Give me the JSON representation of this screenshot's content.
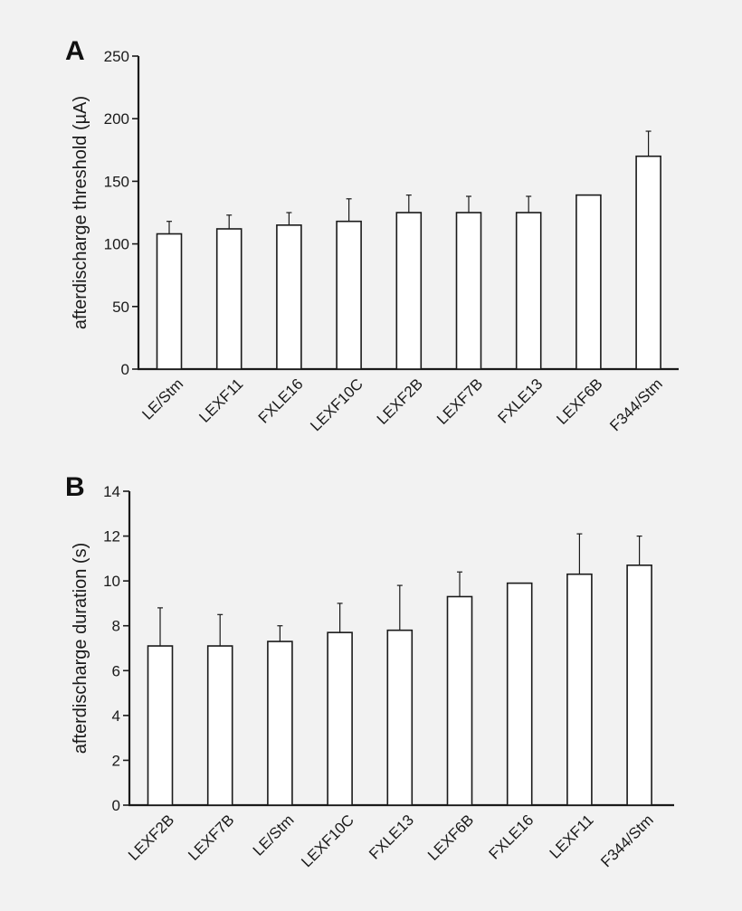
{
  "chart_data": [
    {
      "panel": "A",
      "type": "bar",
      "ylabel": "afterdischarge threshold (µA)",
      "ylim": [
        0,
        250
      ],
      "yticks": [
        0,
        50,
        100,
        150,
        200,
        250
      ],
      "categories": [
        "LE/Stm",
        "LEXF11",
        "FXLE16",
        "LEXF10C",
        "LEXF2B",
        "LEXF7B",
        "FXLE13",
        "LEXF6B",
        "F344/Stm"
      ],
      "values": [
        108,
        112,
        115,
        118,
        125,
        125,
        125,
        139,
        170
      ],
      "error_upper": [
        118,
        123,
        125,
        136,
        139,
        138,
        138,
        null,
        190
      ],
      "grid": false,
      "legend": "none"
    },
    {
      "panel": "B",
      "type": "bar",
      "ylabel": "afterdischarge duration (s)",
      "ylim": [
        0,
        14
      ],
      "yticks": [
        0,
        2,
        4,
        6,
        8,
        10,
        12,
        14
      ],
      "categories": [
        "LEXF2B",
        "LEXF7B",
        "LE/Stm",
        "LEXF10C",
        "FXLE13",
        "LEXF6B",
        "FXLE16",
        "LEXF11",
        "F344/Stm"
      ],
      "values": [
        7.1,
        7.1,
        7.3,
        7.7,
        7.8,
        9.3,
        9.9,
        10.3,
        10.7
      ],
      "error_upper": [
        8.8,
        8.5,
        8.0,
        9.0,
        9.8,
        10.4,
        null,
        12.1,
        12.0
      ],
      "grid": false,
      "legend": "none"
    }
  ]
}
